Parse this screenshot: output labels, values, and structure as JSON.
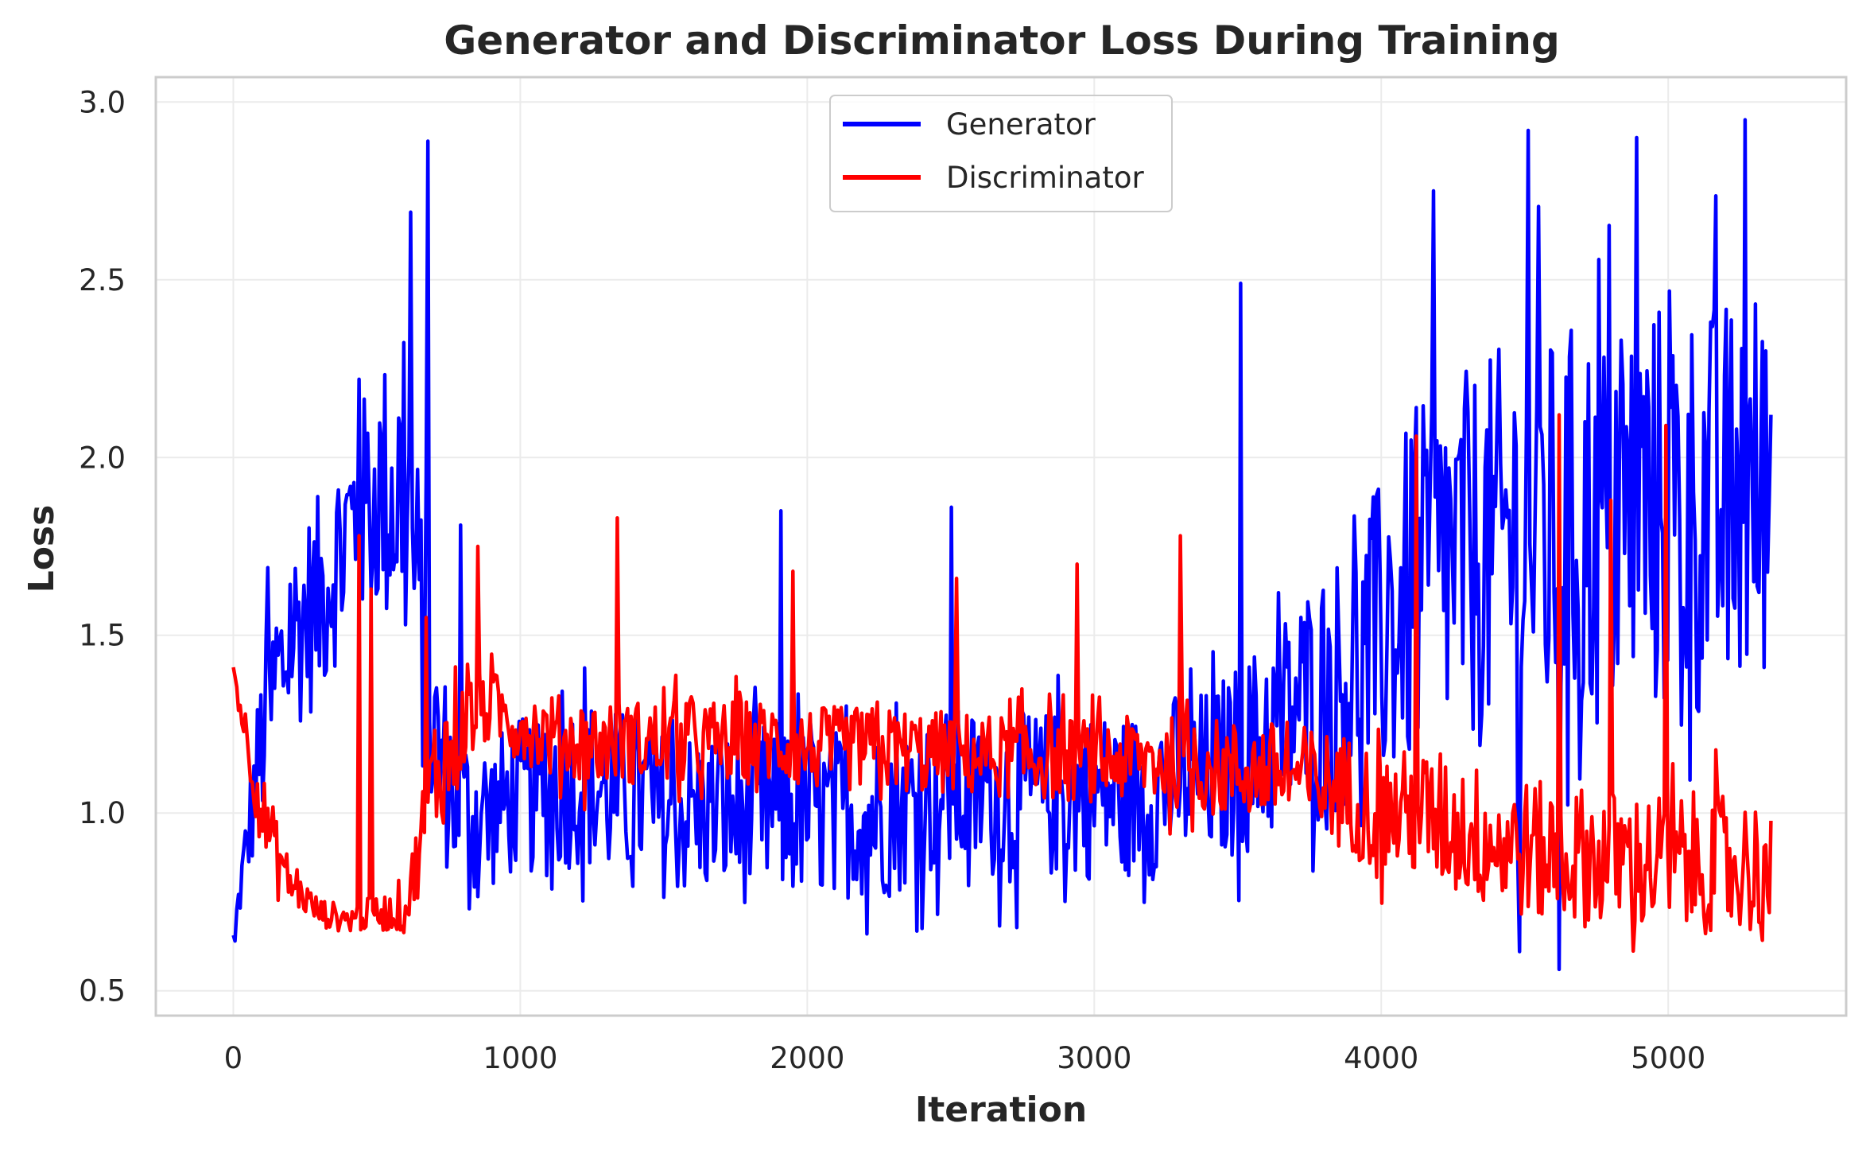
{
  "chart_data": {
    "type": "line",
    "title": "Generator and Discriminator Loss During Training",
    "xlabel": "Iteration",
    "ylabel": "Loss",
    "xlim": [
      -270,
      5620
    ],
    "ylim": [
      0.43,
      3.07
    ],
    "xticks": [
      0,
      1000,
      2000,
      3000,
      4000,
      5000
    ],
    "yticks": [
      0.5,
      1.0,
      1.5,
      2.0,
      2.5,
      3.0
    ],
    "xtick_labels": [
      "0",
      "1000",
      "2000",
      "3000",
      "4000",
      "5000"
    ],
    "ytick_labels": [
      "0.5",
      "1.0",
      "1.5",
      "2.0",
      "2.5",
      "3.0"
    ],
    "grid": true,
    "legend": "upper center",
    "series": [
      {
        "name": "Generator",
        "color": "#0000ff",
        "x": [
          0,
          100,
          200,
          300,
          400,
          500,
          600,
          700,
          800,
          900,
          1000,
          1100,
          1200,
          1300,
          1400,
          1500,
          1600,
          1700,
          1800,
          1900,
          2000,
          2100,
          2200,
          2300,
          2400,
          2500,
          2600,
          2700,
          2800,
          2900,
          3000,
          3100,
          3200,
          3300,
          3400,
          3500,
          3600,
          3700,
          3800,
          3900,
          4000,
          4100,
          4200,
          4300,
          4400,
          4500,
          4600,
          4700,
          4800,
          4900,
          5000,
          5100,
          5200,
          5300,
          5360
        ],
        "y": [
          0.65,
          1.2,
          1.5,
          1.6,
          1.8,
          1.9,
          1.9,
          1.2,
          1.0,
          1.0,
          1.05,
          1.05,
          1.1,
          1.05,
          1.05,
          1.0,
          1.0,
          1.0,
          1.0,
          1.0,
          1.0,
          1.0,
          1.0,
          1.0,
          1.05,
          1.05,
          1.05,
          1.05,
          1.05,
          1.05,
          1.05,
          1.05,
          1.05,
          1.1,
          1.1,
          1.15,
          1.2,
          1.3,
          1.35,
          1.4,
          1.5,
          1.6,
          1.7,
          1.7,
          1.75,
          1.8,
          1.75,
          1.8,
          1.8,
          1.85,
          1.85,
          1.85,
          1.85,
          1.9,
          1.9
        ],
        "spread": [
          0.02,
          0.25,
          0.28,
          0.3,
          0.3,
          0.35,
          0.5,
          0.3,
          0.25,
          0.22,
          0.22,
          0.24,
          0.25,
          0.25,
          0.24,
          0.24,
          0.24,
          0.24,
          0.26,
          0.26,
          0.24,
          0.24,
          0.24,
          0.24,
          0.24,
          0.25,
          0.24,
          0.24,
          0.24,
          0.24,
          0.24,
          0.24,
          0.24,
          0.25,
          0.25,
          0.28,
          0.3,
          0.32,
          0.35,
          0.38,
          0.45,
          0.5,
          0.5,
          0.55,
          0.55,
          0.6,
          0.6,
          0.6,
          0.6,
          0.6,
          0.6,
          0.6,
          0.6,
          0.6,
          0.5
        ],
        "extremes": [
          [
            5,
            0.64
          ],
          [
            120,
            1.69
          ],
          [
            440,
            2.22
          ],
          [
            620,
            2.69
          ],
          [
            680,
            2.89
          ],
          [
            790,
            1.81
          ],
          [
            1910,
            1.85
          ],
          [
            2210,
            0.66
          ],
          [
            2500,
            1.86
          ],
          [
            3510,
            2.49
          ],
          [
            4180,
            2.75
          ],
          [
            4480,
            0.61
          ],
          [
            4510,
            2.92
          ],
          [
            4620,
            0.56
          ],
          [
            4890,
            2.9
          ],
          [
            5270,
            2.95
          ],
          [
            5360,
            2.12
          ]
        ]
      },
      {
        "name": "Discriminator",
        "color": "#ff0000",
        "x": [
          0,
          100,
          200,
          300,
          400,
          500,
          600,
          700,
          800,
          900,
          1000,
          1100,
          1200,
          1300,
          1400,
          1500,
          1600,
          1700,
          1800,
          1900,
          2000,
          2100,
          2200,
          2300,
          2400,
          2500,
          2600,
          2700,
          2800,
          2900,
          3000,
          3100,
          3200,
          3300,
          3400,
          3500,
          3600,
          3700,
          3800,
          3900,
          4000,
          4100,
          4200,
          4300,
          4400,
          4500,
          4600,
          4700,
          4800,
          4900,
          5000,
          5100,
          5200,
          5300,
          5360
        ],
        "y": [
          1.4,
          1.0,
          0.8,
          0.72,
          0.7,
          0.72,
          0.72,
          1.1,
          1.25,
          1.3,
          1.25,
          1.22,
          1.2,
          1.2,
          1.2,
          1.2,
          1.2,
          1.2,
          1.2,
          1.2,
          1.18,
          1.18,
          1.18,
          1.18,
          1.17,
          1.17,
          1.16,
          1.16,
          1.16,
          1.15,
          1.15,
          1.15,
          1.15,
          1.14,
          1.13,
          1.12,
          1.12,
          1.1,
          1.08,
          1.05,
          1.0,
          1.0,
          0.98,
          0.95,
          0.92,
          0.9,
          0.88,
          0.88,
          0.87,
          0.86,
          0.86,
          0.86,
          0.86,
          0.85,
          0.85
        ],
        "spread": [
          0.03,
          0.12,
          0.06,
          0.04,
          0.04,
          0.05,
          0.06,
          0.2,
          0.14,
          0.1,
          0.1,
          0.12,
          0.12,
          0.12,
          0.12,
          0.12,
          0.12,
          0.12,
          0.12,
          0.12,
          0.12,
          0.12,
          0.12,
          0.12,
          0.12,
          0.12,
          0.12,
          0.12,
          0.12,
          0.12,
          0.12,
          0.12,
          0.13,
          0.13,
          0.14,
          0.14,
          0.14,
          0.15,
          0.16,
          0.17,
          0.18,
          0.18,
          0.2,
          0.2,
          0.2,
          0.2,
          0.2,
          0.2,
          0.2,
          0.2,
          0.2,
          0.2,
          0.2,
          0.2,
          0.15
        ],
        "extremes": [
          [
            0,
            1.41
          ],
          [
            440,
            1.78
          ],
          [
            480,
            1.63
          ],
          [
            670,
            1.55
          ],
          [
            850,
            1.75
          ],
          [
            1340,
            1.83
          ],
          [
            1950,
            1.68
          ],
          [
            2520,
            1.66
          ],
          [
            2940,
            1.7
          ],
          [
            3300,
            1.78
          ],
          [
            4120,
            2.06
          ],
          [
            4620,
            2.12
          ],
          [
            4800,
            1.88
          ],
          [
            4990,
            2.09
          ],
          [
            5350,
            0.72
          ]
        ]
      }
    ]
  }
}
